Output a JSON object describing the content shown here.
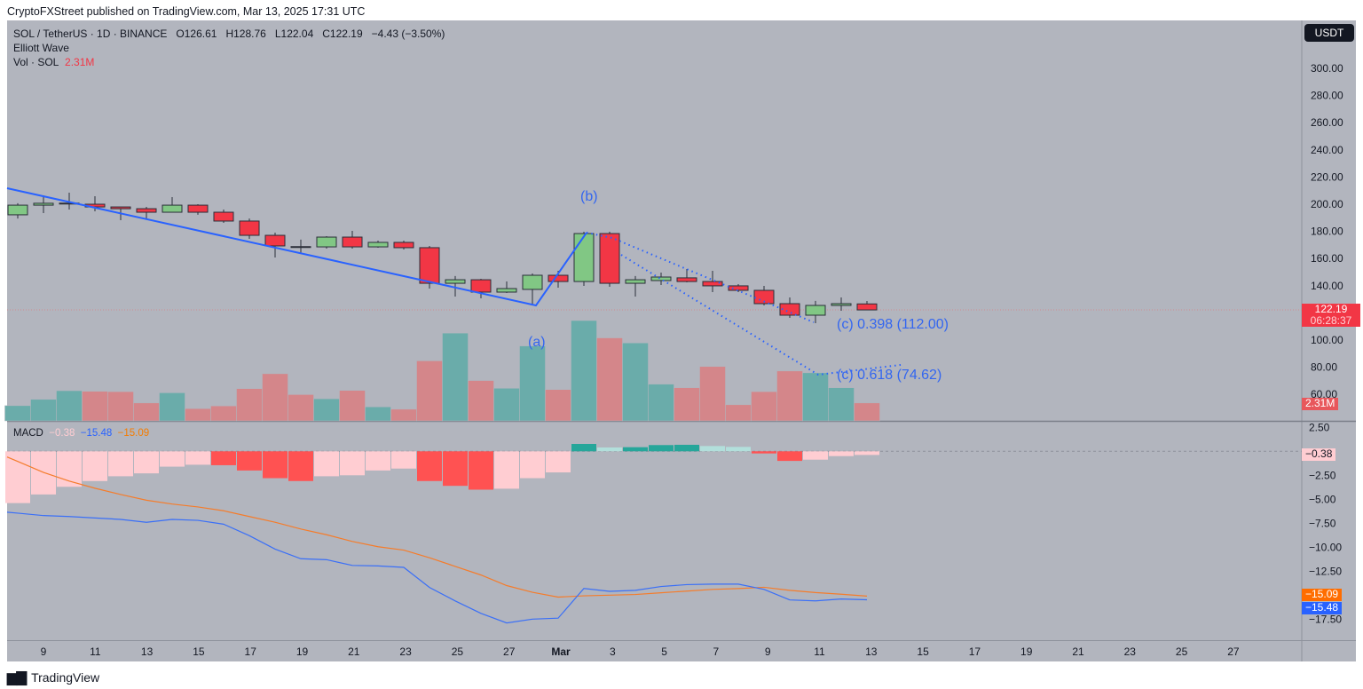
{
  "header": {
    "published": "CryptoFXStreet published on TradingView.com, Mar 13, 2025 17:31 UTC"
  },
  "legend": {
    "symbol": "SOL / TetherUS · 1D · BINANCE",
    "open": "O126.61",
    "high": "H128.76",
    "low": "L122.04",
    "close": "C122.19",
    "change": "−4.43 (−3.50%)",
    "indicator": "Elliott Wave",
    "volume_label": "Vol · SOL",
    "volume_value": "2.31M"
  },
  "macd_legend": {
    "label": "MACD",
    "hist": "−0.38",
    "macd": "−15.48",
    "signal": "−15.09"
  },
  "currency_button": "USDT",
  "price_axis": [
    "300.00",
    "280.00",
    "260.00",
    "240.00",
    "220.00",
    "200.00",
    "180.00",
    "160.00",
    "140.00",
    "100.00",
    "80.00",
    "60.00"
  ],
  "price_axis_values": [
    300,
    280,
    260,
    240,
    220,
    200,
    180,
    160,
    140,
    100,
    80,
    60
  ],
  "macd_axis": [
    "2.50",
    "−2.50",
    "−5.00",
    "−7.50",
    "−10.00",
    "−12.50",
    "−17.50"
  ],
  "macd_axis_values": [
    2.5,
    -2.5,
    -5,
    -7.5,
    -10,
    -12.5,
    -17.5
  ],
  "tags": {
    "last_price": "122.19",
    "countdown": "06:28:37",
    "volume": "2.31M",
    "hist": "−0.38",
    "signal": "−15.09",
    "macd": "−15.48"
  },
  "time_axis": [
    "9",
    "11",
    "13",
    "15",
    "17",
    "19",
    "21",
    "23",
    "25",
    "27",
    "Mar",
    "3",
    "5",
    "7",
    "9",
    "11",
    "13",
    "15",
    "17",
    "19",
    "21",
    "23",
    "25",
    "27"
  ],
  "wave_labels": {
    "a": "(a)",
    "b": "(b)",
    "c1": "(c) 0.398 (112.00)",
    "c2": "(c) 0.618 (74.62)"
  },
  "footer": {
    "brand": "TradingView"
  },
  "colors": {
    "up": "#81c784",
    "down": "#f23645",
    "vol_up": "#6aacaa",
    "vol_down": "#d4868a",
    "macd": "#3a6ff7",
    "signal": "#f57c2b",
    "wave": "#2962ff",
    "bg": "#b2b5be"
  },
  "chart_data": {
    "type": "candlestick",
    "dates": [
      "Feb 8",
      "Feb 9",
      "Feb 10",
      "Feb 11",
      "Feb 12",
      "Feb 13",
      "Feb 14",
      "Feb 15",
      "Feb 16",
      "Feb 17",
      "Feb 18",
      "Feb 19",
      "Feb 20",
      "Feb 21",
      "Feb 22",
      "Feb 23",
      "Feb 24",
      "Feb 25",
      "Feb 26",
      "Feb 27",
      "Feb 28",
      "Mar 1",
      "Mar 2",
      "Mar 3",
      "Mar 4",
      "Mar 5",
      "Mar 6",
      "Mar 7",
      "Mar 8",
      "Mar 9",
      "Mar 10",
      "Mar 11",
      "Mar 12",
      "Mar 13"
    ],
    "ohlc": [
      [
        192.2,
        200.7,
        189.5,
        199.3
      ],
      [
        199.3,
        206.5,
        193.5,
        200.7
      ],
      [
        200.7,
        208.5,
        196.1,
        200.8
      ],
      [
        200.0,
        205.9,
        194.8,
        198.0
      ],
      [
        198.0,
        198.0,
        188.2,
        196.7
      ],
      [
        196.7,
        198.0,
        189.5,
        194.1
      ],
      [
        194.1,
        205.2,
        194.1,
        199.3
      ],
      [
        199.3,
        200.0,
        192.2,
        194.1
      ],
      [
        194.1,
        196.1,
        186.3,
        187.6
      ],
      [
        187.6,
        189.5,
        174.5,
        177.1
      ],
      [
        177.1,
        179.1,
        160.8,
        169.3
      ],
      [
        168.8,
        173.9,
        164.1,
        168.6
      ],
      [
        168.6,
        176.5,
        167.3,
        175.8
      ],
      [
        175.8,
        180.4,
        167.3,
        168.6
      ],
      [
        168.6,
        173.2,
        168.0,
        171.9
      ],
      [
        171.9,
        173.2,
        166.7,
        168.0
      ],
      [
        168.0,
        169.3,
        137.9,
        141.8
      ],
      [
        141.8,
        147.1,
        132.0,
        144.4
      ],
      [
        144.4,
        145.1,
        130.7,
        135.3
      ],
      [
        135.3,
        143.1,
        134.6,
        137.9
      ],
      [
        137.3,
        149.0,
        125.5,
        147.7
      ],
      [
        147.7,
        151.0,
        138.6,
        143.1
      ],
      [
        143.1,
        179.7,
        139.9,
        178.4
      ],
      [
        178.4,
        179.7,
        139.2,
        141.8
      ],
      [
        141.8,
        147.1,
        132.0,
        144.4
      ],
      [
        143.8,
        149.7,
        140.5,
        146.4
      ],
      [
        145.8,
        152.3,
        142.5,
        143.1
      ],
      [
        143.1,
        151.0,
        135.3,
        139.9
      ],
      [
        139.9,
        141.2,
        135.3,
        136.6
      ],
      [
        136.6,
        139.9,
        125.5,
        126.8
      ],
      [
        126.8,
        131.4,
        116.3,
        118.3
      ],
      [
        118.3,
        128.8,
        112.4,
        125.5
      ],
      [
        125.5,
        131.4,
        121.6,
        126.8
      ],
      [
        126.61,
        128.76,
        122.04,
        122.19
      ]
    ],
    "volume_millions": [
      1.96,
      2.77,
      3.89,
      3.81,
      3.77,
      2.31,
      3.62,
      1.58,
      1.93,
      4.16,
      6.08,
      3.39,
      2.85,
      3.93,
      1.81,
      1.5,
      7.74,
      11.32,
      5.2,
      4.2,
      9.66,
      4.04,
      12.94,
      10.7,
      10.05,
      4.74,
      4.27,
      7.01,
      2.08,
      3.77,
      6.43,
      6.2,
      4.27,
      2.31
    ],
    "macd_hist": [
      -5.4,
      -4.5,
      -3.7,
      -3.1,
      -2.6,
      -2.3,
      -1.6,
      -1.4,
      -1.45,
      -2.0,
      -2.8,
      -3.1,
      -2.6,
      -2.5,
      -2.0,
      -1.8,
      -3.1,
      -3.6,
      -4.0,
      -3.9,
      -2.8,
      -2.2,
      0.77,
      0.4,
      0.43,
      0.65,
      0.68,
      0.55,
      0.46,
      -0.22,
      -1.0,
      -0.87,
      -0.5,
      -0.38
    ],
    "macd_line": [
      -6.45,
      -6.7,
      -6.8,
      -6.95,
      -7.1,
      -7.4,
      -7.1,
      -7.2,
      -7.6,
      -8.8,
      -10.2,
      -11.2,
      -11.3,
      -11.9,
      -11.95,
      -12.1,
      -14.2,
      -15.6,
      -16.9,
      -17.9,
      -17.5,
      -17.4,
      -14.3,
      -14.6,
      -14.5,
      -14.1,
      -13.9,
      -13.85,
      -13.85,
      -14.4,
      -15.5,
      -15.6,
      -15.4,
      -15.48
    ],
    "signal_line": [
      -1.05,
      -2.2,
      -3.1,
      -3.85,
      -4.5,
      -5.1,
      -5.5,
      -5.8,
      -6.2,
      -6.8,
      -7.4,
      -8.1,
      -8.7,
      -9.4,
      -9.95,
      -10.3,
      -11.1,
      -12.0,
      -12.9,
      -14.0,
      -14.7,
      -15.2,
      -15.07,
      -15.0,
      -14.93,
      -14.75,
      -14.58,
      -14.4,
      -14.31,
      -14.18,
      -14.5,
      -14.73,
      -14.9,
      -15.1
    ],
    "last_price": 122.19,
    "price_range": [
      40,
      310
    ],
    "macd_range": [
      -20,
      3.5
    ]
  }
}
